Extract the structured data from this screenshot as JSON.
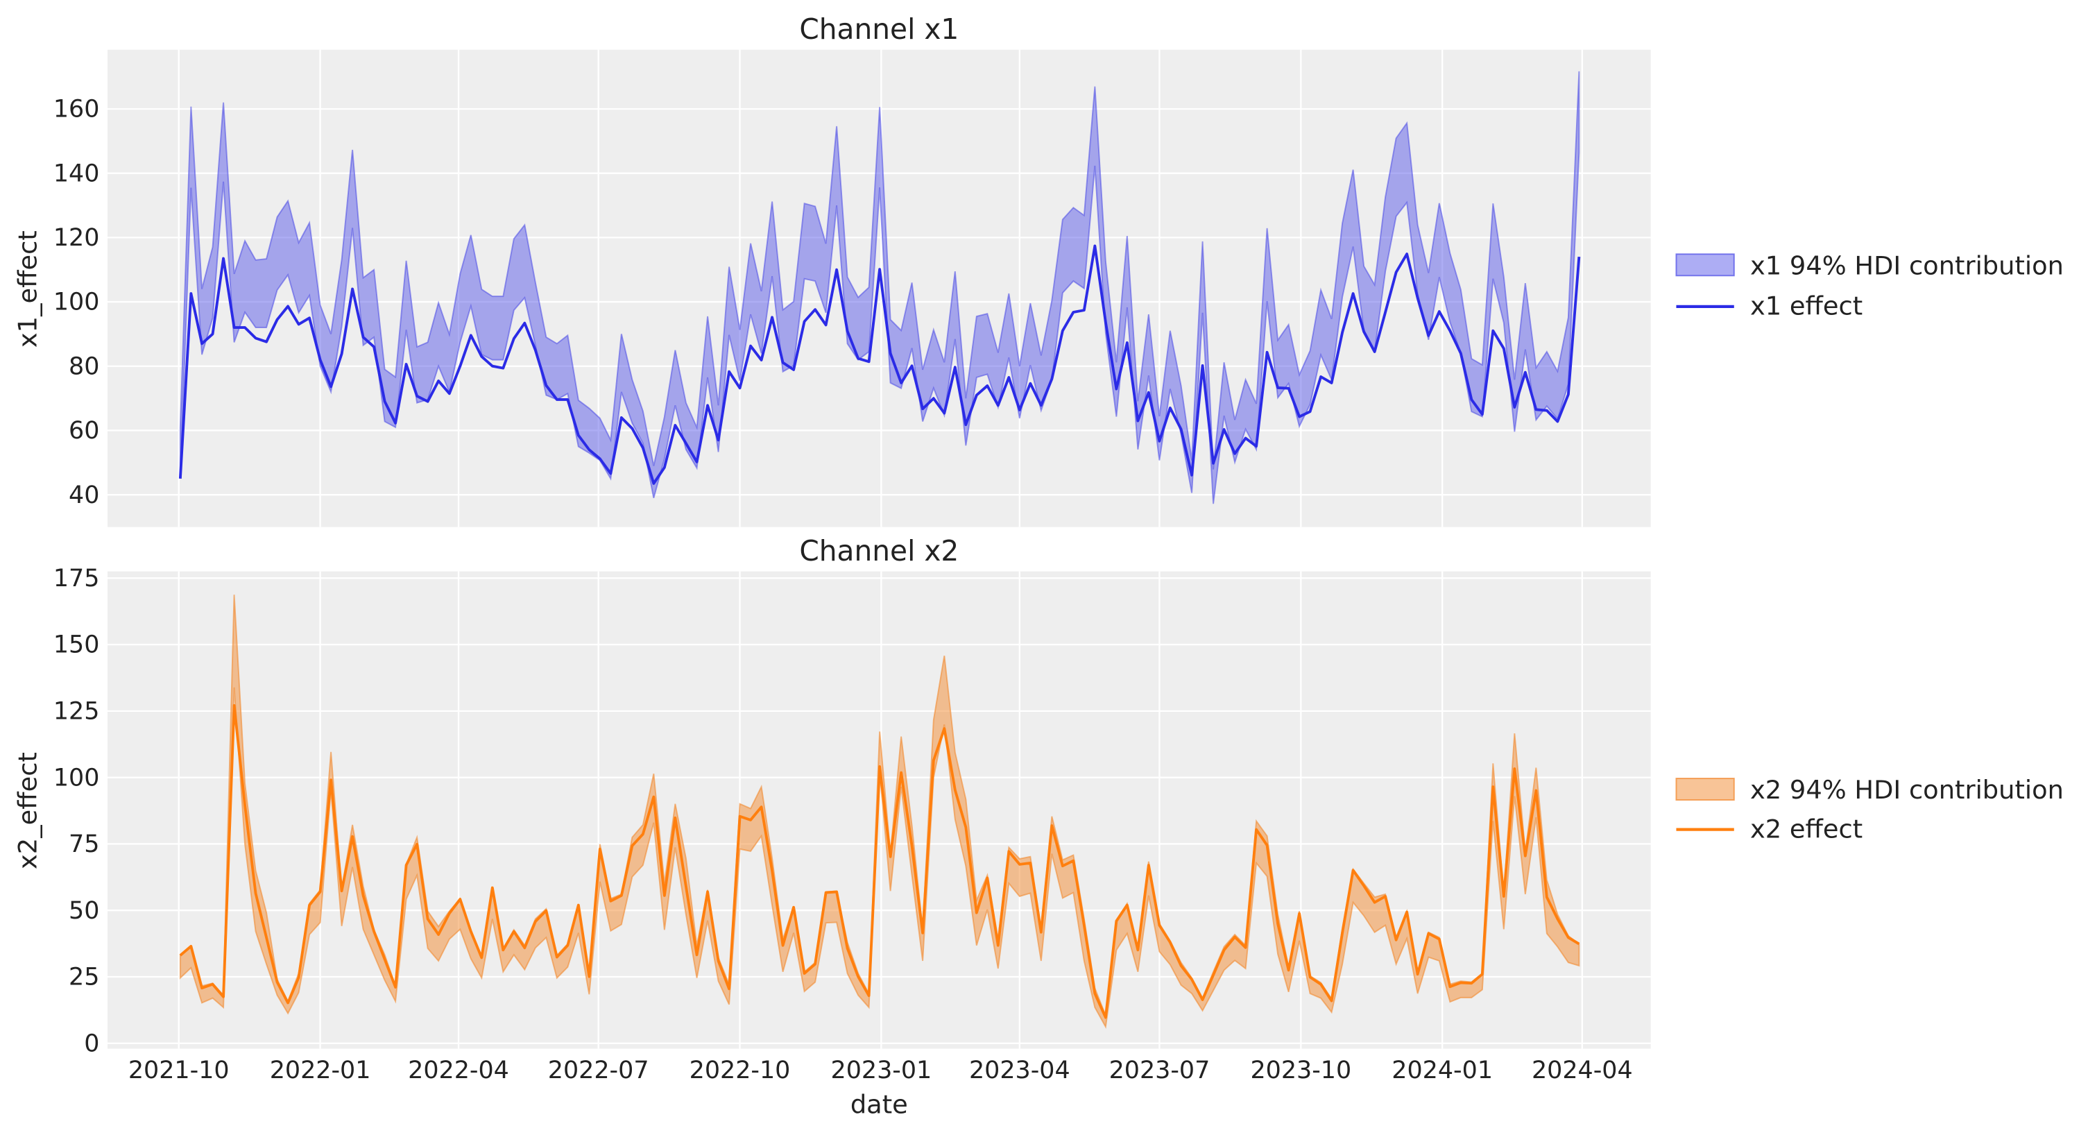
{
  "chart_data": [
    {
      "type": "line",
      "title": "Channel x1",
      "xlabel": "",
      "ylabel": "x1_effect",
      "ylim": [
        30,
        178
      ],
      "yticks": [
        40,
        60,
        80,
        100,
        120,
        140,
        160
      ],
      "xticks": [
        "2021-10",
        "2022-01",
        "2022-04",
        "2022-07",
        "2022-10",
        "2023-01",
        "2023-04",
        "2023-07",
        "2023-10",
        "2024-01",
        "2024-04"
      ],
      "xtick_labels_shown": false,
      "grid": true,
      "legend": "right",
      "colors": {
        "line": "#2b2be6",
        "band": "#4a4ae6"
      },
      "series": [
        {
          "name": "x1 94% HDI contribution",
          "kind": "band",
          "lower": [
            45.4,
            135.5,
            83.6,
            95,
            137.4,
            87.4,
            96.8,
            92,
            92,
            103.7,
            108.4,
            96.6,
            102,
            80,
            72,
            92.3,
            123,
            86.5,
            89,
            62.8,
            61,
            91.3,
            68.6,
            69.6,
            80,
            72,
            87.4,
            98.7,
            83.6,
            82,
            82,
            97.4,
            101.3,
            86.5,
            71,
            69.6,
            71.5,
            55,
            53,
            50.7,
            45,
            72,
            62.3,
            56,
            39,
            51.2,
            67.8,
            54.1,
            48.3,
            76.5,
            53.3,
            89.7,
            75.4,
            96.1,
            84,
            108,
            78.3,
            80.2,
            107.2,
            106.5,
            96.6,
            130,
            87,
            82,
            84.5,
            135.6,
            74.8,
            73.1,
            85.6,
            62.8,
            73.2,
            64.7,
            88.4,
            55.3,
            76.5,
            77.5,
            67.2,
            82.7,
            63.8,
            80.3,
            66.2,
            75.8,
            102.8,
            106.5,
            104.2,
            142.3,
            90.3,
            64.3,
            98.3,
            54.1,
            77.1,
            50.7,
            72.9,
            58.9,
            40.6,
            96.6,
            37.2,
            64.6,
            50.1,
            60.4,
            54.1,
            100.2,
            70.2,
            74.6,
            61.3,
            68.1,
            83.5,
            75.8,
            101.5,
            117.2,
            91,
            84.7,
            109.5,
            126.6,
            130.9,
            102.5,
            88.2,
            107.7,
            93.7,
            84,
            65.9,
            64.3,
            107.2,
            93.5,
            59.6,
            85.2,
            63.3,
            67.6,
            63.6,
            74.4,
            146.4
          ],
          "upper": [
            61,
            160.7,
            104,
            117,
            162,
            108.7,
            119,
            113,
            113.4,
            126.4,
            131.4,
            118.4,
            124.6,
            99,
            90,
            113,
            147.3,
            107.5,
            110,
            79,
            76.6,
            112.8,
            86,
            87.4,
            99.7,
            89.9,
            108.7,
            120.8,
            103.9,
            101.7,
            101.7,
            119.6,
            123.9,
            106,
            89,
            87,
            89.6,
            69.4,
            66.9,
            63.8,
            57,
            90,
            75.8,
            66,
            49,
            64.2,
            85,
            68.6,
            60.9,
            95.5,
            67.8,
            110.9,
            91.3,
            118.2,
            103.3,
            131.2,
            97.5,
            100.1,
            130.6,
            129.7,
            118.1,
            154.6,
            107.7,
            101.4,
            104.5,
            160.6,
            94.5,
            91.1,
            106,
            78.9,
            91.3,
            81.2,
            109.5,
            70,
            95.5,
            96.3,
            84.2,
            102.6,
            80,
            99.6,
            83.3,
            100.4,
            125.6,
            129.3,
            126.9,
            167,
            112.6,
            81.2,
            120.5,
            69.1,
            96.1,
            64.4,
            91,
            73.9,
            50.7,
            118.8,
            47.9,
            81.2,
            63.3,
            75.8,
            68.3,
            122.9,
            88.1,
            92.9,
            77.3,
            84.8,
            103.7,
            94.7,
            124.4,
            141.1,
            111.1,
            105.3,
            132.6,
            150.9,
            155.6,
            123.9,
            109,
            130.7,
            115.1,
            103.8,
            82.3,
            80.4,
            130.6,
            107.7,
            75.8,
            105.8,
            79.5,
            84.5,
            78.4,
            95.1,
            171.7
          ]
        },
        {
          "name": "x1 effect",
          "kind": "line",
          "values": [
            45,
            102.6,
            87,
            90,
            113.5,
            92,
            92,
            88.7,
            87.6,
            94.5,
            98.6,
            93,
            95,
            82,
            73.6,
            83.8,
            104,
            89,
            86,
            69,
            62.3,
            80.6,
            70.7,
            69,
            75.4,
            71.5,
            80,
            89.6,
            83,
            80,
            79.4,
            88.6,
            93.4,
            85,
            74,
            69.6,
            69.6,
            58.5,
            54,
            51.2,
            46.6,
            64,
            60.6,
            54.6,
            43.5,
            48.5,
            61.6,
            56,
            50.2,
            67.8,
            57,
            78.3,
            73.2,
            86.3,
            81.9,
            95.2,
            81.1,
            78.9,
            93.9,
            97.6,
            92.8,
            110,
            90.9,
            82.4,
            81.4,
            110.1,
            84,
            74.8,
            80.1,
            66.7,
            70,
            65.4,
            79.7,
            61.8,
            71,
            73.9,
            67.8,
            76.5,
            66.4,
            74.6,
            67.8,
            76,
            91,
            96.8,
            97.4,
            117.4,
            93.7,
            72.9,
            87.3,
            63,
            71.8,
            56.7,
            67,
            60.4,
            46.1,
            80.2,
            49.8,
            60.3,
            52.8,
            57.6,
            55.1,
            84.3,
            73.3,
            73.1,
            64.3,
            65.9,
            76.7,
            74.8,
            90.5,
            102.6,
            90.7,
            84.5,
            96.8,
            109.2,
            114.9,
            101.2,
            89.5,
            97,
            91,
            84,
            69.6,
            65,
            91,
            85.5,
            67.2,
            78.1,
            66.5,
            66.2,
            62.8,
            71.2,
            114
          ]
        }
      ]
    },
    {
      "type": "line",
      "title": "Channel x2",
      "xlabel": "date",
      "ylabel": "x2_effect",
      "ylim": [
        -4,
        178
      ],
      "yticks": [
        0,
        25,
        50,
        75,
        100,
        125,
        150,
        175
      ],
      "xticks": [
        "2021-10",
        "2022-01",
        "2022-04",
        "2022-07",
        "2022-10",
        "2023-01",
        "2023-04",
        "2023-07",
        "2023-10",
        "2024-01",
        "2024-04"
      ],
      "grid": true,
      "legend": "right",
      "colors": {
        "line": "#ff7f0e",
        "band": "#f28a30"
      },
      "series": [
        {
          "name": "x2 94% HDI contribution",
          "kind": "band",
          "lower": [
            24.6,
            28.4,
            15.2,
            17,
            13.5,
            133.9,
            74.9,
            42.1,
            29.8,
            18.1,
            11.3,
            19.1,
            40.9,
            45.4,
            95.3,
            44.1,
            66.3,
            42.9,
            33.3,
            23.7,
            15.8,
            54.2,
            63.2,
            35.7,
            31,
            39.2,
            42.9,
            31.8,
            24.6,
            46.8,
            26.9,
            33.3,
            27.7,
            35.9,
            39.8,
            24.6,
            28.7,
            41.5,
            18.4,
            60.8,
            42.3,
            44.7,
            62.6,
            67,
            83,
            42.7,
            73.7,
            48.5,
            24.6,
            46.2,
            23.4,
            14.6,
            73.1,
            72.3,
            78,
            52,
            26.9,
            41.5,
            19.5,
            23,
            45.3,
            45.5,
            26.3,
            18.1,
            13.5,
            102.3,
            57.3,
            96.5,
            63.2,
            31,
            100,
            119.9,
            84.2,
            66.7,
            36.8,
            50.3,
            28.1,
            60.2,
            55.3,
            56.5,
            31,
            71.3,
            54.6,
            56.7,
            31,
            13.5,
            6.2,
            35.1,
            41.3,
            26.9,
            55.6,
            34.5,
            29.6,
            21.9,
            18.7,
            12.3,
            19.9,
            27.5,
            31.2,
            28.1,
            67.8,
            62.8,
            33.6,
            19.3,
            38.6,
            18.7,
            17,
            11.7,
            29.8,
            53,
            48,
            41.8,
            44.4,
            29.8,
            39.4,
            18.7,
            32.4,
            31,
            15.6,
            17.2,
            17.2,
            20.2,
            83.6,
            42.9,
            93,
            56.1,
            85,
            41.3,
            36.3,
            30.4,
            29.2
          ],
          "upper": [
            33.3,
            36.5,
            21.6,
            22.6,
            18.1,
            168.8,
            97.7,
            64.9,
            49.1,
            24,
            15.8,
            26.3,
            52.6,
            57.7,
            109.6,
            57.9,
            82.2,
            59.1,
            42.7,
            33.3,
            21.6,
            67.3,
            77.5,
            49.7,
            43.9,
            49.7,
            54.4,
            42.7,
            32.7,
            58.8,
            35.7,
            42.7,
            36.8,
            46.8,
            50.6,
            33.1,
            37.4,
            52.3,
            25.7,
            74.9,
            54.4,
            56.1,
            77.5,
            82.2,
            101.4,
            60.2,
            90.1,
            69.6,
            36.8,
            57.7,
            32.2,
            22.2,
            90.1,
            88.3,
            96.5,
            69.6,
            39.2,
            51.5,
            26.9,
            30.4,
            57,
            57.2,
            38,
            26.3,
            18.7,
            117.3,
            71.3,
            115.4,
            81.9,
            42.7,
            121.6,
            145.8,
            109.4,
            91.8,
            53.8,
            63.2,
            39.2,
            73.7,
            69.4,
            70.2,
            42.7,
            85.4,
            69,
            70.8,
            46.8,
            20.7,
            10.5,
            46.4,
            52.6,
            35.7,
            68.4,
            45,
            38.6,
            30.4,
            24.6,
            17,
            26.9,
            36.3,
            40.9,
            36.8,
            83.6,
            78,
            48.5,
            28.7,
            49.7,
            25.4,
            22.8,
            16.7,
            43.3,
            65.5,
            60.2,
            55,
            56.1,
            39.8,
            49.7,
            26.9,
            41.8,
            39.8,
            22.2,
            23.4,
            23,
            26.3,
            105.3,
            55.6,
            116.6,
            71.9,
            103.7,
            61.4,
            48.5,
            40.4,
            37.4
          ]
        },
        {
          "name": "x2 effect",
          "kind": "line",
          "values": [
            33.1,
            36.5,
            20.8,
            22.2,
            17.5,
            127.1,
            89.5,
            56.4,
            39.8,
            23,
            15.2,
            24.8,
            52,
            57,
            99.1,
            57.3,
            77.8,
            55.6,
            42.1,
            31.6,
            21.1,
            67,
            74.9,
            46.8,
            40.9,
            48.9,
            54.2,
            42.1,
            32.2,
            58.5,
            35.1,
            42.1,
            35.9,
            45.8,
            49.9,
            32.4,
            36.8,
            52,
            25.1,
            73.1,
            53.5,
            55.6,
            74.3,
            78.7,
            92.7,
            55.6,
            84.8,
            59.1,
            33.3,
            57,
            31,
            20.5,
            85.4,
            84,
            88.9,
            64.9,
            36.8,
            51.2,
            26.3,
            29.8,
            56.7,
            57,
            35.7,
            25.1,
            17.9,
            104.1,
            70.2,
            101.8,
            74.3,
            41.5,
            106.4,
            118.4,
            95.3,
            81.3,
            49.1,
            62.2,
            36.8,
            72.2,
            67.3,
            67.8,
            41.8,
            81.9,
            66.7,
            68.7,
            44.4,
            18.7,
            9.7,
            46,
            52,
            35.1,
            67,
            44.4,
            38,
            29.2,
            24,
            16.4,
            25.7,
            35.1,
            40,
            36,
            80.4,
            74.5,
            45,
            27.5,
            48.8,
            24.9,
            22.2,
            16,
            41.5,
            65.1,
            59.3,
            53,
            55.3,
            38.9,
            49.4,
            26,
            41.3,
            39.2,
            21.3,
            22.8,
            22.6,
            26,
            96.5,
            55.3,
            103.3,
            70.5,
            95.1,
            55,
            46.8,
            39.8,
            37.4
          ]
        }
      ]
    }
  ],
  "x": [
    "2021-10-02",
    "2021-10-09",
    "2021-10-16",
    "2021-10-23",
    "2021-10-30",
    "2021-11-06",
    "2021-11-13",
    "2021-11-20",
    "2021-11-27",
    "2021-12-04",
    "2021-12-11",
    "2021-12-18",
    "2021-12-25",
    "2022-01-01",
    "2022-01-08",
    "2022-01-15",
    "2022-01-22",
    "2022-01-29",
    "2022-02-05",
    "2022-02-12",
    "2022-02-19",
    "2022-02-26",
    "2022-03-05",
    "2022-03-12",
    "2022-03-19",
    "2022-03-26",
    "2022-04-02",
    "2022-04-09",
    "2022-04-16",
    "2022-04-23",
    "2022-04-30",
    "2022-05-07",
    "2022-05-14",
    "2022-05-21",
    "2022-05-28",
    "2022-06-04",
    "2022-06-11",
    "2022-06-18",
    "2022-06-25",
    "2022-07-02",
    "2022-07-09",
    "2022-07-16",
    "2022-07-23",
    "2022-07-30",
    "2022-08-06",
    "2022-08-13",
    "2022-08-20",
    "2022-08-27",
    "2022-09-03",
    "2022-09-10",
    "2022-09-17",
    "2022-09-24",
    "2022-10-01",
    "2022-10-08",
    "2022-10-15",
    "2022-10-22",
    "2022-10-29",
    "2022-11-05",
    "2022-11-12",
    "2022-11-19",
    "2022-11-26",
    "2022-12-03",
    "2022-12-10",
    "2022-12-17",
    "2022-12-24",
    "2022-12-31",
    "2023-01-07",
    "2023-01-14",
    "2023-01-21",
    "2023-01-28",
    "2023-02-04",
    "2023-02-11",
    "2023-02-18",
    "2023-02-25",
    "2023-03-04",
    "2023-03-11",
    "2023-03-18",
    "2023-03-25",
    "2023-04-01",
    "2023-04-08",
    "2023-04-15",
    "2023-04-22",
    "2023-04-29",
    "2023-05-06",
    "2023-05-13",
    "2023-05-20",
    "2023-05-27",
    "2023-06-03",
    "2023-06-10",
    "2023-06-17",
    "2023-06-24",
    "2023-07-01",
    "2023-07-08",
    "2023-07-15",
    "2023-07-22",
    "2023-07-29",
    "2023-08-05",
    "2023-08-12",
    "2023-08-19",
    "2023-08-26",
    "2023-09-02",
    "2023-09-09",
    "2023-09-16",
    "2023-09-23",
    "2023-09-30",
    "2023-10-07",
    "2023-10-14",
    "2023-10-21",
    "2023-10-28",
    "2023-11-04",
    "2023-11-11",
    "2023-11-18",
    "2023-11-25",
    "2023-12-02",
    "2023-12-09",
    "2023-12-16",
    "2023-12-23",
    "2023-12-30",
    "2024-01-06",
    "2024-01-13",
    "2024-01-20",
    "2024-01-27",
    "2024-02-03",
    "2024-02-10",
    "2024-02-17",
    "2024-02-24",
    "2024-03-02",
    "2024-03-09",
    "2024-03-16",
    "2024-03-23",
    "2024-03-30"
  ]
}
